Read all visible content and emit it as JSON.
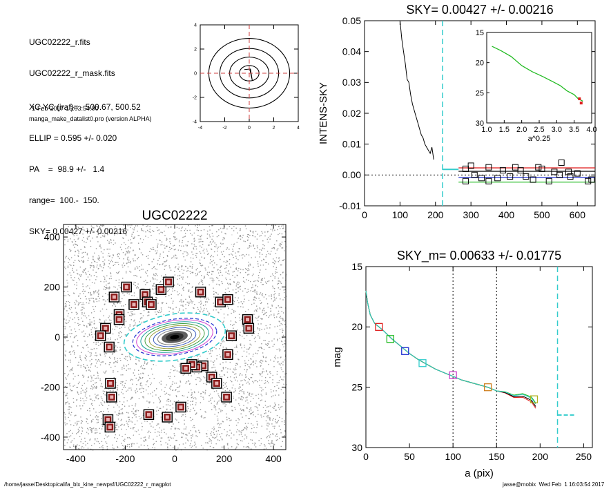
{
  "header": {
    "lines": [
      "UGC02222_r.fits",
      "UGC02222_r_mask.fits",
      "XC,YC (iraf)=   500.67, 500.52",
      "ELLIP = 0.595 +/- 0.020",
      "PA    =  98.9 +/-   1.4",
      "range=  100.-  150.",
      "SKY= 0.00427 +/- 0.00216"
    ],
    "date_line": "1-Feb-2017 16:03:54.00",
    "program_line": "manga_make_datalist0.pro (version ALPHA)"
  },
  "footer": {
    "path": "/home/jasse/Desktop/califa_blx_kine_newpsf/UGC02222_r_magplot",
    "user_stamp": "jasse@mobix  Wed Feb  1 16:03:54 2017"
  },
  "colors": {
    "axis": "#000000",
    "black_line": "#000000",
    "red_line": "#e02020",
    "green_line": "#22bb22",
    "blue_line": "#2030d0",
    "cyan_dash": "#33cccc",
    "dashed_red": "#d04040",
    "mask_fill": "#8b1a1a",
    "noise_gray": "#9a9a9a"
  },
  "chart_data": [
    {
      "id": "contour",
      "type": "line",
      "xlim": [
        -4,
        4
      ],
      "ylim": [
        -4,
        4
      ],
      "x_ticks": [
        -4,
        -2,
        0,
        2,
        4
      ],
      "y_ticks": [
        -4,
        -2,
        0,
        2,
        4
      ],
      "contour_radii": [
        0.8,
        1.6,
        2.4,
        3.3
      ],
      "contour_ellipticity": [
        0.25,
        0.22,
        0.2,
        0.18
      ],
      "crosshair": [
        0,
        0
      ]
    },
    {
      "id": "sky",
      "type": "line",
      "title": "SKY= 0.00427 +/- 0.00216",
      "xlabel": "",
      "ylabel": "INTENS-SKY",
      "xlim": [
        0,
        650
      ],
      "ylim": [
        -0.01,
        0.05
      ],
      "x_ticks": [
        0,
        100,
        200,
        300,
        400,
        500,
        600
      ],
      "y_ticks": [
        -0.01,
        0.0,
        0.01,
        0.02,
        0.03,
        0.04,
        0.05
      ],
      "y_tick_labels": [
        "-0.01",
        "0.00",
        "0.01",
        "0.02",
        "0.03",
        "0.04",
        "0.05"
      ],
      "profile": {
        "x": [
          100,
          105,
          110,
          115,
          120,
          125,
          130,
          135,
          140,
          145,
          150,
          155,
          160,
          165,
          170,
          175,
          180,
          185,
          190,
          195
        ],
        "y": [
          0.05,
          0.044,
          0.04,
          0.036,
          0.031,
          0.03,
          0.026,
          0.023,
          0.021,
          0.019,
          0.017,
          0.015,
          0.013,
          0.012,
          0.01,
          0.009,
          0.008,
          0.007,
          0.009,
          0.005
        ]
      },
      "squares": {
        "x": [
          285,
          300,
          310,
          350,
          375,
          390,
          425,
          455,
          475,
          500,
          535,
          555,
          575,
          600,
          640,
          285,
          330,
          350,
          410,
          440,
          490,
          520,
          550,
          580,
          630
        ],
        "y": [
          0.002,
          0.003,
          0.0,
          0.0025,
          -0.001,
          0.0015,
          0.0025,
          -0.0005,
          -0.0015,
          0.002,
          0.001,
          0.004,
          0.001,
          0.0005,
          -0.0015,
          -0.002,
          -0.001,
          -0.002,
          -0.0005,
          0.0015,
          0.0025,
          -0.002,
          0.0,
          -0.0005,
          -0.002
        ]
      },
      "hlines": {
        "red": 0.0023,
        "black": 0.0012,
        "blue": -0.0008,
        "green": -0.0023,
        "cyan": 0.0018
      },
      "dotted_zero": 0.0,
      "vline_cyan": 220,
      "inset": {
        "type": "line",
        "xlabel": "a^0.25",
        "xlim": [
          1.0,
          4.0
        ],
        "ylim": [
          15,
          30
        ],
        "x_ticks": [
          1.0,
          1.5,
          2.0,
          2.5,
          3.0,
          3.5,
          4.0
        ],
        "x_tick_labels": [
          "1.0",
          "1.5",
          "2.0",
          "2.5",
          "3.0",
          "3.5",
          "4.0"
        ],
        "y_ticks": [
          15,
          20,
          25,
          30
        ],
        "curve": {
          "x": [
            1.15,
            1.4,
            1.7,
            2.0,
            2.3,
            2.6,
            2.9,
            3.1,
            3.3,
            3.5,
            3.6,
            3.75
          ],
          "y": [
            17.3,
            18.0,
            19.0,
            20.5,
            21.5,
            22.3,
            23.2,
            23.8,
            24.7,
            25.3,
            25.9,
            26.4
          ]
        },
        "red_marks": {
          "x": [
            3.65,
            3.7
          ],
          "y": [
            26.0,
            26.7
          ]
        }
      }
    },
    {
      "id": "image",
      "type": "scatter",
      "title": "UGC02222",
      "xlim": [
        -450,
        450
      ],
      "ylim": [
        -450,
        450
      ],
      "x_ticks": [
        -400,
        -200,
        0,
        200,
        400
      ],
      "y_ticks": [
        -400,
        -200,
        0,
        200,
        400
      ],
      "masks": {
        "x": [
          -245,
          -195,
          -165,
          -120,
          -55,
          -25,
          105,
          185,
          215,
          -225,
          -110,
          -95,
          -225,
          -280,
          -300,
          -265,
          230,
          295,
          300,
          215,
          115,
          90,
          70,
          45,
          150,
          170,
          210,
          -260,
          -255,
          -270,
          -262,
          -105,
          -30,
          25
        ],
        "y": [
          160,
          200,
          130,
          170,
          190,
          220,
          180,
          140,
          150,
          90,
          140,
          130,
          70,
          35,
          5,
          -40,
          5,
          70,
          35,
          -70,
          -115,
          -120,
          -110,
          -125,
          -160,
          -185,
          -240,
          -185,
          -240,
          -330,
          -360,
          -310,
          -320,
          -280
        ]
      },
      "galaxy_center": [
        0,
        0
      ],
      "galaxy_ellipse": {
        "semi_major": 200,
        "ellipticity": 0.595,
        "pa_deg": 98.9
      },
      "outer_dashed_ellipse": {
        "semi_major": 230,
        "ellipticity": 0.55
      },
      "inner_dashed_ellipse": {
        "semi_major": 195,
        "ellipticity": 0.58
      }
    },
    {
      "id": "mag",
      "type": "line",
      "title": "SKY_m=  0.00633 +/- 0.01775",
      "xlabel": "a (pix)",
      "ylabel": "mag",
      "xlim": [
        0,
        260
      ],
      "ylim": [
        15,
        30
      ],
      "y_inverted": true,
      "x_ticks": [
        0,
        50,
        100,
        150,
        200,
        250
      ],
      "y_ticks": [
        15,
        20,
        25,
        30
      ],
      "profile": {
        "x": [
          0,
          2,
          5,
          10,
          15,
          20,
          30,
          40,
          50,
          60,
          70,
          80,
          90,
          100,
          110,
          120,
          130,
          140,
          150,
          160,
          170,
          180,
          190,
          195
        ],
        "y": [
          17.0,
          18.0,
          19.0,
          19.7,
          20.0,
          20.3,
          21.0,
          21.6,
          22.2,
          22.7,
          23.1,
          23.5,
          23.8,
          24.1,
          24.4,
          24.6,
          24.8,
          25.0,
          25.3,
          25.4,
          25.7,
          25.6,
          25.9,
          26.4
        ]
      },
      "squares": [
        {
          "x": 15,
          "y": 20.0,
          "color": "#e02020"
        },
        {
          "x": 28,
          "y": 21.0,
          "color": "#22bb22"
        },
        {
          "x": 45,
          "y": 22.0,
          "color": "#2030d0"
        },
        {
          "x": 65,
          "y": 23.0,
          "color": "#33cccc"
        },
        {
          "x": 100,
          "y": 24.0,
          "color": "#cc44cc"
        },
        {
          "x": 140,
          "y": 25.0,
          "color": "#d08020"
        },
        {
          "x": 193,
          "y": 26.0,
          "color": "#b0b020"
        }
      ],
      "vlines_dotted": [
        100,
        150
      ],
      "vline_cyan": 220,
      "sky_segment": {
        "x": [
          220,
          240
        ],
        "y": 27.3
      }
    }
  ]
}
